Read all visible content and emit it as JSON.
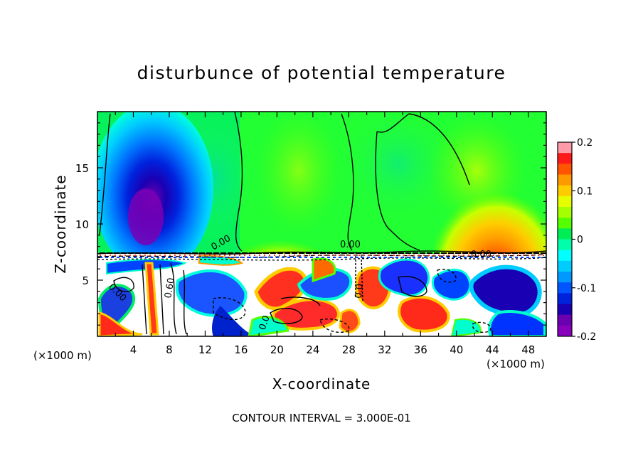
{
  "chart_data": {
    "type": "heatmap",
    "title": "disturbunce of potential temperature",
    "xlabel": "X-coordinate",
    "ylabel": "Z-coordinate",
    "x_unit_left": "(×1000 m)",
    "x_unit_right": "(×1000 m)",
    "x_ticks": [
      "4",
      "8",
      "12",
      "16",
      "20",
      "24",
      "28",
      "32",
      "36",
      "40",
      "44",
      "48"
    ],
    "y_ticks": [
      "5",
      "10",
      "15"
    ],
    "xlim": [
      0,
      50
    ],
    "ylim": [
      0,
      20
    ],
    "colorbar": {
      "ticks": [
        "0.2",
        "0.1",
        "0",
        "-0.1",
        "-0.2"
      ],
      "range": [
        -0.2,
        0.2
      ],
      "colors": [
        "#ff9aa8",
        "#ff1a1a",
        "#ff5500",
        "#ff9900",
        "#ffcc00",
        "#e6ff00",
        "#a6ff00",
        "#55ff00",
        "#00ee55",
        "#00ffaa",
        "#00ffff",
        "#00ccff",
        "#0099ff",
        "#0055ff",
        "#0022dd",
        "#1a00b3",
        "#6a00b0",
        "#8800bb"
      ]
    },
    "contour_labels": [
      "0.00",
      "0.00",
      "0.00",
      "0.60",
      "0.00",
      "0.0",
      "0.0"
    ],
    "contour_interval": "CONTOUR INTERVAL = 3.000E-01"
  }
}
